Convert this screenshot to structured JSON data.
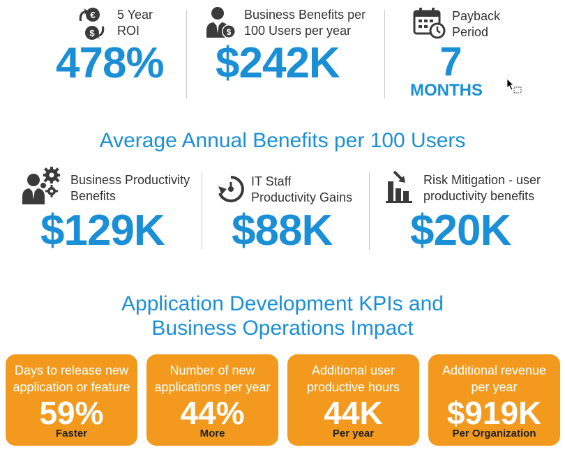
{
  "top_metrics": {
    "roi": {
      "label_line1": "5 Year",
      "label_line2": "ROI",
      "value": "478%",
      "icon": "currency-exchange-icon"
    },
    "business_benefits": {
      "label_line1": "Business Benefits per",
      "label_line2": "100 Users per year",
      "value": "$242K",
      "icon": "businessman-dollar-icon"
    },
    "payback": {
      "label_line1": "Payback",
      "label_line2": "Period",
      "value": "7",
      "unit": "MONTHS",
      "icon": "calendar-clock-icon"
    }
  },
  "section1_title": "Average Annual Benefits per 100 Users",
  "benefits": {
    "business_productivity": {
      "label_line1": "Business Productivity",
      "label_line2": "Benefits",
      "value": "$129K",
      "icon": "person-gears-icon"
    },
    "it_staff": {
      "label_line1": "IT Staff",
      "label_line2": "Productivity Gains",
      "value": "$88K",
      "icon": "refresh-arrow-icon"
    },
    "risk_mitigation": {
      "label_line1": "Risk Mitigation - user",
      "label_line2": "productivity benefits",
      "value": "$20K",
      "icon": "bar-chart-down-arrow-icon"
    }
  },
  "section2_title_line1": "Application Development KPIs and",
  "section2_title_line2": "Business Operations Impact",
  "kpi_cards": [
    {
      "label_line1": "Days to release new",
      "label_line2": "application or feature",
      "value": "59%",
      "sub": "Faster"
    },
    {
      "label_line1": "Number of new",
      "label_line2": "applications per year",
      "value": "44%",
      "sub": "More"
    },
    {
      "label_line1": "Additional user",
      "label_line2": "productive hours",
      "value": "44K",
      "sub": "Per year"
    },
    {
      "label_line1": "Additional revenue",
      "label_line2": "per year",
      "value": "$919K",
      "sub": "Per Organization"
    }
  ],
  "colors": {
    "accent_blue": "#1a8fd6",
    "card_orange": "#f39a1e",
    "icon_dark": "#3a3a3a"
  }
}
